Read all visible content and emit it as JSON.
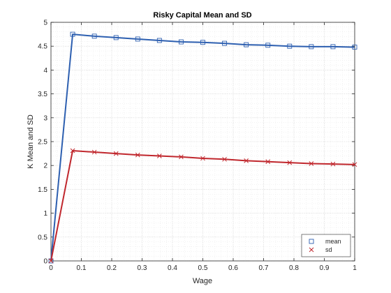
{
  "chart_data": {
    "type": "line",
    "title": "Risky Capital Mean and SD",
    "xlabel": "Wage",
    "ylabel": "K Mean and SD",
    "xlim": [
      0,
      1
    ],
    "ylim": [
      0,
      5
    ],
    "xticks": [
      0,
      0.1,
      0.2,
      0.3,
      0.4,
      0.5,
      0.6,
      0.7,
      0.8,
      0.9,
      1
    ],
    "xtick_labels": [
      "0",
      "0.1",
      "0.2",
      "0.3",
      "0.4",
      "0.5",
      "0.6",
      "0.7",
      "0.8",
      "0.9",
      "1"
    ],
    "yticks": [
      0,
      0.5,
      1,
      1.5,
      2,
      2.5,
      3,
      3.5,
      4,
      4.5,
      5
    ],
    "ytick_labels": [
      "0",
      "0.5",
      "1",
      "1.5",
      "2",
      "2.5",
      "3",
      "3.5",
      "4",
      "4.5",
      "5"
    ],
    "grid": "on, dotted with minor grid",
    "legend_location": "bottom-right",
    "x": [
      0,
      0.0714,
      0.1429,
      0.2143,
      0.2857,
      0.3571,
      0.4286,
      0.5,
      0.5714,
      0.6429,
      0.7143,
      0.7857,
      0.8571,
      0.9286,
      1
    ],
    "series": [
      {
        "name": "mean",
        "marker": "square",
        "color": "#2d5fb0",
        "values": [
          0,
          4.75,
          4.71,
          4.68,
          4.65,
          4.62,
          4.59,
          4.58,
          4.56,
          4.53,
          4.52,
          4.5,
          4.49,
          4.49,
          4.48
        ]
      },
      {
        "name": "sd",
        "marker": "x",
        "color": "#c0272d",
        "values": [
          0,
          2.31,
          2.28,
          2.25,
          2.22,
          2.2,
          2.18,
          2.15,
          2.13,
          2.1,
          2.08,
          2.06,
          2.04,
          2.03,
          2.02
        ]
      }
    ]
  }
}
